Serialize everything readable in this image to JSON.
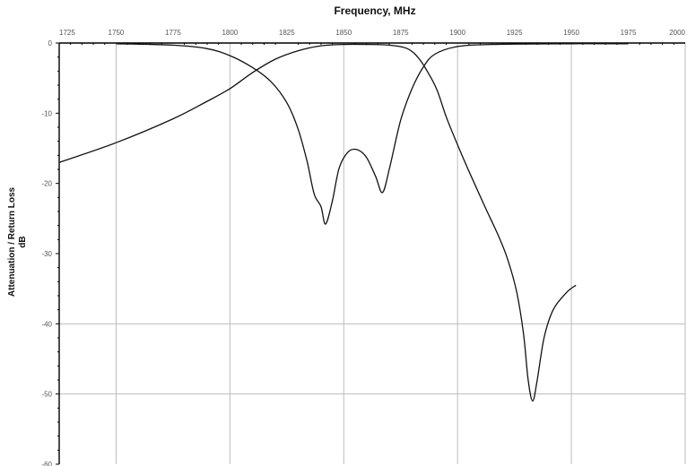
{
  "chart_data": {
    "type": "line",
    "title": "Frequency, MHz",
    "ylabel_line1": "Attenuation / Return Loss",
    "ylabel_line2": "dB",
    "x_tick_labels": [
      "1725",
      "1750",
      "1775",
      "1800",
      "1825",
      "1850",
      "1875",
      "1900",
      "1925",
      "1950",
      "1975",
      "2000"
    ],
    "xlim": [
      1725,
      2000
    ],
    "y_tick_labels": [
      "0",
      "-10",
      "-20",
      "-30",
      "-40",
      "-50",
      "-60"
    ],
    "ylim": [
      -60,
      0
    ],
    "grid": true,
    "series": [
      {
        "points": [
          [
            1725,
            -17.0
          ],
          [
            1750,
            -14.2
          ],
          [
            1775,
            -10.8
          ],
          [
            1790,
            -8.3
          ],
          [
            1800,
            -6.5
          ],
          [
            1810,
            -4.2
          ],
          [
            1820,
            -2.3
          ],
          [
            1830,
            -1.1
          ],
          [
            1840,
            -0.4
          ],
          [
            1850,
            -0.2
          ],
          [
            1860,
            -0.2
          ],
          [
            1870,
            -0.3
          ],
          [
            1878,
            -0.8
          ],
          [
            1883,
            -2.2
          ],
          [
            1887,
            -4.2
          ],
          [
            1891,
            -6.7
          ],
          [
            1895,
            -10.5
          ],
          [
            1900,
            -14.5
          ],
          [
            1906,
            -19.0
          ],
          [
            1912,
            -23.3
          ],
          [
            1918,
            -27.5
          ],
          [
            1922,
            -30.8
          ],
          [
            1926,
            -35.5
          ],
          [
            1929,
            -41.5
          ],
          [
            1931,
            -48.0
          ],
          [
            1933,
            -51.0
          ],
          [
            1935,
            -48.0
          ],
          [
            1938,
            -42.0
          ],
          [
            1942,
            -38.0
          ],
          [
            1948,
            -35.5
          ],
          [
            1952,
            -34.5
          ]
        ]
      },
      {
        "points": [
          [
            1750,
            -0.1
          ],
          [
            1775,
            -0.3
          ],
          [
            1790,
            -0.8
          ],
          [
            1800,
            -1.8
          ],
          [
            1810,
            -3.5
          ],
          [
            1818,
            -5.5
          ],
          [
            1825,
            -8.5
          ],
          [
            1830,
            -12.3
          ],
          [
            1834,
            -17.0
          ],
          [
            1837,
            -21.5
          ],
          [
            1840,
            -23.3
          ],
          [
            1842,
            -25.8
          ],
          [
            1845,
            -22.5
          ],
          [
            1848,
            -17.8
          ],
          [
            1852,
            -15.5
          ],
          [
            1856,
            -15.2
          ],
          [
            1860,
            -16.3
          ],
          [
            1864,
            -19.0
          ],
          [
            1867,
            -21.3
          ],
          [
            1870,
            -18.0
          ],
          [
            1875,
            -11.0
          ],
          [
            1880,
            -6.5
          ],
          [
            1885,
            -3.4
          ],
          [
            1890,
            -1.6
          ],
          [
            1900,
            -0.5
          ],
          [
            1915,
            -0.2
          ],
          [
            1950,
            -0.1
          ],
          [
            1975,
            -0.1
          ]
        ]
      }
    ]
  }
}
